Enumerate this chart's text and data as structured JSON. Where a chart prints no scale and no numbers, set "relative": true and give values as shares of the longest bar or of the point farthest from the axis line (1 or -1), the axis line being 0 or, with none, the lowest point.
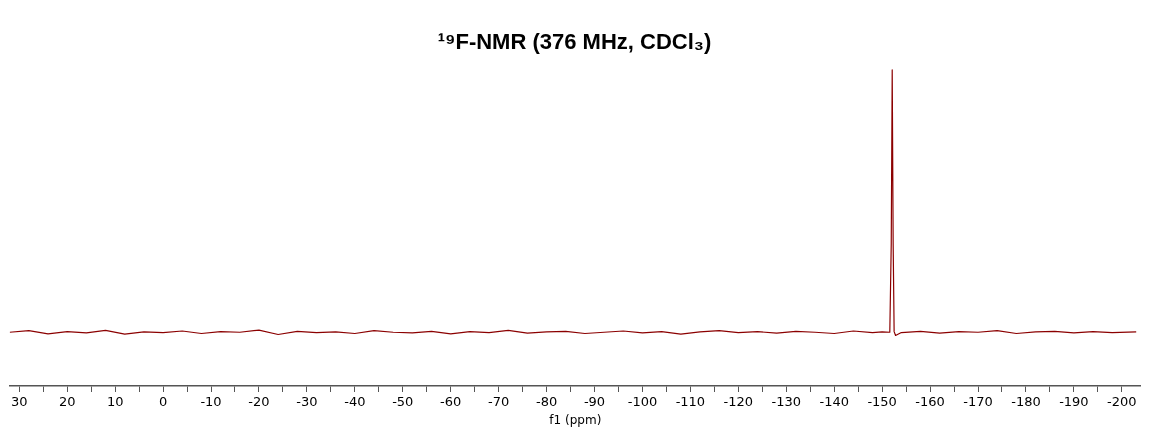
{
  "chart_data": {
    "type": "line",
    "title": "¹⁹F-NMR (376 MHz, CDCl₃)",
    "xlabel": "f1 (ppm)",
    "relative": true,
    "x": [
      32,
      28,
      24,
      20,
      16,
      12,
      8,
      4,
      0,
      -4,
      -8,
      -12,
      -16,
      -20,
      -24,
      -28,
      -32,
      -36,
      -40,
      -44,
      -48,
      -52,
      -56,
      -60,
      -64,
      -68,
      -72,
      -76,
      -80,
      -84,
      -88,
      -92,
      -96,
      -100,
      -104,
      -108,
      -112,
      -116,
      -120,
      -124,
      -128,
      -132,
      -136,
      -140,
      -144,
      -148,
      -150,
      -151.6,
      -151.9,
      -152.1,
      -152.3,
      -152.5,
      -152.8,
      -154,
      -158,
      -162,
      -166,
      -170,
      -174,
      -178,
      -182,
      -186,
      -190,
      -194,
      -198,
      -203
    ],
    "series": [
      {
        "color": "#8b0000",
        "values": [
          0.17,
          0.175,
          0.165,
          0.172,
          0.168,
          0.176,
          0.164,
          0.171,
          0.169,
          0.174,
          0.166,
          0.172,
          0.17,
          0.177,
          0.163,
          0.173,
          0.169,
          0.171,
          0.166,
          0.175,
          0.17,
          0.168,
          0.173,
          0.165,
          0.172,
          0.169,
          0.176,
          0.167,
          0.171,
          0.173,
          0.166,
          0.17,
          0.174,
          0.168,
          0.172,
          0.164,
          0.171,
          0.175,
          0.169,
          0.172,
          0.167,
          0.173,
          0.17,
          0.166,
          0.174,
          0.169,
          0.171,
          0.17,
          0.45,
          1,
          0.45,
          0.172,
          0.16,
          0.169,
          0.173,
          0.167,
          0.172,
          0.17,
          0.175,
          0.166,
          0.171,
          0.173,
          0.168,
          0.172,
          0.169,
          0.171
        ]
      }
    ],
    "xlim": [
      32,
      -204
    ],
    "xticks": [
      30,
      {
        "value": 25,
        "label": null
      },
      20,
      {
        "value": 15,
        "label": null
      },
      10,
      {
        "value": 5,
        "label": null
      },
      0,
      {
        "value": -5,
        "label": null
      },
      -10,
      {
        "value": -15,
        "label": null
      },
      -20,
      {
        "value": -25,
        "label": null
      },
      -30,
      {
        "value": -35,
        "label": null
      },
      -40,
      {
        "value": -45,
        "label": null
      },
      -50,
      {
        "value": -55,
        "label": null
      },
      -60,
      {
        "value": -65,
        "label": null
      },
      -70,
      {
        "value": -75,
        "label": null
      },
      -80,
      {
        "value": -85,
        "label": null
      },
      -90,
      {
        "value": -95,
        "label": null
      },
      -100,
      {
        "value": -105,
        "label": null
      },
      -110,
      {
        "value": -115,
        "label": null
      },
      -120,
      {
        "value": -125,
        "label": null
      },
      -130,
      {
        "value": -135,
        "label": null
      },
      -140,
      {
        "value": -145,
        "label": null
      },
      -150,
      {
        "value": -155,
        "label": null
      },
      -160,
      {
        "value": -165,
        "label": null
      },
      -170,
      {
        "value": -175,
        "label": null
      },
      -180,
      {
        "value": -185,
        "label": null
      },
      -190,
      {
        "value": -195,
        "label": null
      },
      -200
    ],
    "grid": false,
    "legend": false,
    "marker": "none",
    "line_style": "solid"
  }
}
